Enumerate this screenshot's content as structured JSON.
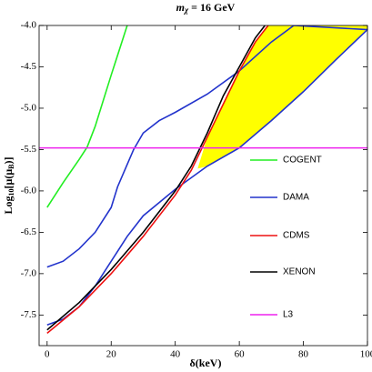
{
  "chart_data": {
    "type": "line",
    "title": {
      "main": "m",
      "sub": "χ",
      "rest": " = 16 GeV"
    },
    "x_label": "δ(keV)",
    "y_label": {
      "pre": "Log",
      "sub": "10",
      "post": "[μ(μ",
      "sub2": "B",
      "end": ")]"
    },
    "xlim": [
      -2.5,
      100
    ],
    "ylim": [
      -7.87,
      -4.0
    ],
    "xticks": [
      0,
      20,
      40,
      60,
      80,
      100
    ],
    "yticks": [
      {
        "value": -4.0,
        "label": "-4.0"
      },
      -4.5,
      {
        "value": -5.0,
        "label": "-5.0"
      },
      -5.5,
      {
        "value": -6.0,
        "label": "-6.0"
      },
      -6.5,
      {
        "value": -7.0,
        "label": "-7.0"
      },
      -7.5
    ],
    "region": {
      "color": "#ffff00",
      "x": [
        47,
        50,
        55,
        60,
        65,
        69,
        100,
        100,
        90,
        80,
        70,
        60,
        50
      ],
      "values": [
        -5.73,
        -5.35,
        -4.95,
        -4.55,
        -4.2,
        -4.0,
        -4.0,
        -4.05,
        -4.42,
        -4.8,
        -5.15,
        -5.48,
        -5.7
      ]
    },
    "series": [
      {
        "name": "COGENT",
        "color": "#22ee22",
        "x": [
          0,
          5,
          10,
          12.5,
          15,
          20,
          25
        ],
        "values": [
          -6.2,
          -5.9,
          -5.62,
          -5.47,
          -5.22,
          -4.6,
          -4.0
        ]
      },
      {
        "name": "DAMA",
        "color": "#2233cc",
        "x": [
          0,
          5,
          10,
          15,
          20,
          25,
          30,
          40,
          50,
          60,
          70,
          80,
          90,
          100,
          77,
          70,
          60,
          50,
          40,
          35,
          30,
          27,
          25,
          22,
          20,
          15,
          10,
          5,
          0
        ],
        "values": [
          -7.62,
          -7.55,
          -7.4,
          -7.15,
          -6.85,
          -6.55,
          -6.3,
          -5.98,
          -5.7,
          -5.48,
          -5.15,
          -4.8,
          -4.42,
          -4.05,
          -4.0,
          -4.2,
          -4.55,
          -4.83,
          -5.05,
          -5.15,
          -5.3,
          -5.5,
          -5.68,
          -5.95,
          -6.2,
          -6.5,
          -6.7,
          -6.85,
          -6.92
        ]
      },
      {
        "name": "CDMS",
        "color": "#ee1111",
        "x": [
          0,
          10,
          20,
          30,
          40,
          45,
          50,
          55,
          60,
          65,
          69
        ],
        "values": [
          -7.72,
          -7.4,
          -7.0,
          -6.55,
          -6.05,
          -5.75,
          -5.35,
          -4.95,
          -4.55,
          -4.2,
          -4.0
        ]
      },
      {
        "name": "XENON",
        "color": "#000000",
        "x": [
          0,
          10,
          20,
          30,
          40,
          45,
          50,
          55,
          60,
          65,
          68
        ],
        "values": [
          -7.68,
          -7.35,
          -6.95,
          -6.5,
          -6.0,
          -5.7,
          -5.3,
          -4.85,
          -4.5,
          -4.15,
          -4.0
        ]
      },
      {
        "name": "L3",
        "color": "#ee22ee",
        "x": [
          -2.5,
          100
        ],
        "values": [
          -5.48,
          -5.48
        ]
      }
    ]
  }
}
